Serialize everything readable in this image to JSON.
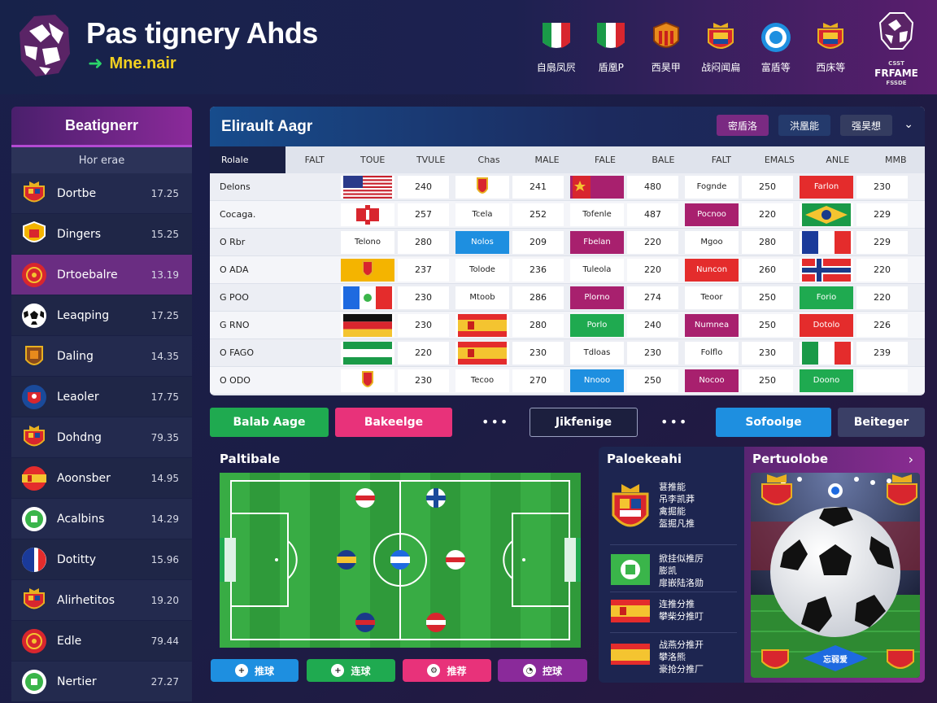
{
  "header": {
    "title": "Pas tignery Ahds",
    "subtitle": "Mne.nair",
    "teams": [
      {
        "label": "自扇凤屄",
        "icon": "flag-italy-icon"
      },
      {
        "label": "盾凰P",
        "icon": "flag-italy-icon"
      },
      {
        "label": "西昊甲",
        "icon": "crest-orange-icon"
      },
      {
        "label": "战闷闻扁",
        "icon": "crest-red-icon"
      },
      {
        "label": "富盾等",
        "icon": "target-icon"
      },
      {
        "label": "西床等",
        "icon": "crest-red-icon"
      }
    ],
    "corner_logo_top": "CSST",
    "corner_text": "FRFAME",
    "corner_sub": "FSSDE"
  },
  "sidebar": {
    "title": "Beatignerr",
    "subtitle": "Hor erae",
    "items": [
      {
        "name": "Dortbe",
        "value": "17.25",
        "icon": "crest-red-icon"
      },
      {
        "name": "Dingers",
        "value": "15.25",
        "icon": "shield-orange-icon"
      },
      {
        "name": "Drtoebalre",
        "value": "13.19",
        "icon": "badge-red-icon"
      },
      {
        "name": "Leaqping",
        "value": "17.25",
        "icon": "soccer-ball-icon"
      },
      {
        "name": "Daling",
        "value": "14.35",
        "icon": "crest-brown-icon"
      },
      {
        "name": "Leaoler",
        "value": "17.75",
        "icon": "badge-blue-icon"
      },
      {
        "name": "Dohdng",
        "value": "79.35",
        "icon": "crest-red-icon"
      },
      {
        "name": "Aoonsber",
        "value": "14.95",
        "icon": "flag-spain-icon"
      },
      {
        "name": "Acalbins",
        "value": "14.29",
        "icon": "badge-green-icon"
      },
      {
        "name": "Dotitty",
        "value": "15.96",
        "icon": "flag-france-icon"
      },
      {
        "name": "Alirhetitos",
        "value": "19.20",
        "icon": "crest-red-icon"
      },
      {
        "name": "Edle",
        "value": "79.44",
        "icon": "badge-red-icon"
      },
      {
        "name": "Nertier",
        "value": "27.27",
        "icon": "badge-green-icon"
      }
    ]
  },
  "table": {
    "title": "Elirault Aagr",
    "tabs": [
      "密盾洛",
      "洪凰能",
      "强昊想"
    ],
    "headers": [
      "Rolale",
      "FALT",
      "TOUE",
      "TVULE",
      "Chas",
      "MALE",
      "FALE",
      "BALE",
      "FALT",
      "EMALS",
      "ANLE",
      "MMB"
    ],
    "rows": [
      {
        "label": "Delons",
        "cells": [
          {
            "text": "",
            "color": "#ffffff",
            "flag": "usa",
            "value": "240"
          },
          {
            "text": "",
            "color": "#ffffff",
            "flag": "crest",
            "value": "241"
          },
          {
            "text": "",
            "color": "#a8206e",
            "flag": "china",
            "value": "480"
          },
          {
            "text": "Fognde",
            "color": "#ffffff",
            "flag": "",
            "value": "250"
          },
          {
            "text": "Farlon",
            "color": "#e42c2c",
            "flag": "",
            "value": "230"
          }
        ]
      },
      {
        "label": "Cocaga.",
        "cells": [
          {
            "text": "",
            "color": "#ffffff",
            "flag": "redcross",
            "value": "257"
          },
          {
            "text": "Tcela",
            "color": "#ffffff",
            "flag": "",
            "value": "252"
          },
          {
            "text": "Tofenle",
            "color": "#ffffff",
            "flag": "",
            "value": "487"
          },
          {
            "text": "Pocnoo",
            "color": "#a8206e",
            "flag": "",
            "value": "220"
          },
          {
            "text": "",
            "color": "#ffffff",
            "flag": "brazil",
            "value": "229"
          }
        ]
      },
      {
        "label": "O Rbr",
        "cells": [
          {
            "text": "Telono",
            "color": "#ffffff",
            "flag": "",
            "value": "280"
          },
          {
            "text": "Nolos",
            "color": "#1e8fe0",
            "flag": "",
            "value": "209"
          },
          {
            "text": "Fbelan",
            "color": "#a8206e",
            "flag": "",
            "value": "220"
          },
          {
            "text": "Mgoo",
            "color": "#ffffff",
            "flag": "",
            "value": "280"
          },
          {
            "text": "",
            "color": "#ffffff",
            "flag": "france",
            "value": "229"
          }
        ]
      },
      {
        "label": "O ADA",
        "cells": [
          {
            "text": "",
            "color": "#f4b400",
            "flag": "crest",
            "value": "237"
          },
          {
            "text": "Tolode",
            "color": "#ffffff",
            "flag": "",
            "value": "236"
          },
          {
            "text": "Tuleola",
            "color": "#ffffff",
            "flag": "",
            "value": "220"
          },
          {
            "text": "Nuncon",
            "color": "#e42c2c",
            "flag": "",
            "value": "260"
          },
          {
            "text": "",
            "color": "#ffffff",
            "flag": "norway",
            "value": "220"
          }
        ]
      },
      {
        "label": "G POO",
        "cells": [
          {
            "text": "",
            "color": "#ffffff",
            "flag": "mexico",
            "value": "230"
          },
          {
            "text": "Mtoob",
            "color": "#ffffff",
            "flag": "",
            "value": "286"
          },
          {
            "text": "Plorno",
            "color": "#a8206e",
            "flag": "",
            "value": "274"
          },
          {
            "text": "Teoor",
            "color": "#ffffff",
            "flag": "",
            "value": "250"
          },
          {
            "text": "Forio",
            "color": "#1faa50",
            "flag": "",
            "value": "220"
          }
        ]
      },
      {
        "label": "G RNO",
        "cells": [
          {
            "text": "",
            "color": "#ffffff",
            "flag": "germany",
            "value": "230"
          },
          {
            "text": "",
            "color": "#ffffff",
            "flag": "spain",
            "value": "280"
          },
          {
            "text": "Porlo",
            "color": "#1faa50",
            "flag": "",
            "value": "240"
          },
          {
            "text": "Numnea",
            "color": "#a8206e",
            "flag": "",
            "value": "250"
          },
          {
            "text": "Dotolo",
            "color": "#e42c2c",
            "flag": "",
            "value": "226"
          }
        ]
      },
      {
        "label": "O FAGO",
        "cells": [
          {
            "text": "",
            "color": "#ffffff",
            "flag": "nigeria",
            "value": "220"
          },
          {
            "text": "",
            "color": "#ffffff",
            "flag": "spain",
            "value": "230"
          },
          {
            "text": "Tdloas",
            "color": "#ffffff",
            "flag": "",
            "value": "230"
          },
          {
            "text": "Folflo",
            "color": "#ffffff",
            "flag": "",
            "value": "230"
          },
          {
            "text": "",
            "color": "#ffffff",
            "flag": "italy",
            "value": "239"
          }
        ]
      },
      {
        "label": "O ODO",
        "cells": [
          {
            "text": "",
            "color": "#ffffff",
            "flag": "crest",
            "value": "230"
          },
          {
            "text": "Tecoo",
            "color": "#ffffff",
            "flag": "",
            "value": "270"
          },
          {
            "text": "Nnooo",
            "color": "#1e8fe0",
            "flag": "",
            "value": "250"
          },
          {
            "text": "Nocoo",
            "color": "#a8206e",
            "flag": "",
            "value": "250"
          },
          {
            "text": "Doono",
            "color": "#1faa50",
            "flag": "",
            "value": ""
          }
        ]
      }
    ]
  },
  "actions": {
    "btn1": "Balab Aage",
    "btn2": "Bakeelge",
    "btn3": "Jikfenige",
    "btn4": "Sofoolge",
    "btn5": "Beiteger",
    "dots": "•••"
  },
  "pitch": {
    "title": "Paltibale",
    "quick": [
      "推球",
      "连球",
      "推荐",
      "控球"
    ]
  },
  "news": {
    "title": "Paloekeahi",
    "items": [
      {
        "lines": [
          "葚推能",
          "吊李凯莽",
          "禽掘能",
          "盔掘凡推"
        ]
      },
      {
        "lines": [
          "掀挂似推厉",
          "膨凯",
          "扉嵌陆洛勋"
        ]
      },
      {
        "lines": [
          "连推分推",
          "攀柴分推叮"
        ]
      },
      {
        "lines": [
          "战燕分推开",
          "攀洛熊",
          "豪抢分推厂"
        ]
      }
    ]
  },
  "photo": {
    "title": "Pertuolobe",
    "badge": "忘弱爱"
  }
}
